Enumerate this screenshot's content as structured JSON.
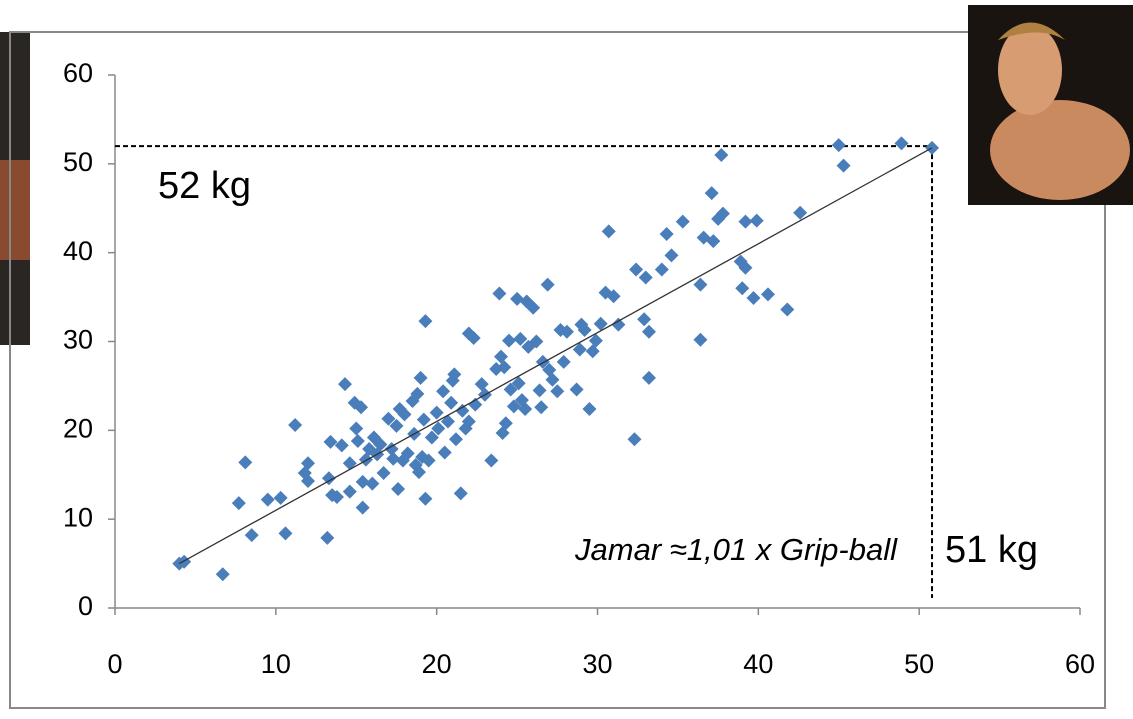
{
  "chart_data": {
    "type": "scatter",
    "series": [
      {
        "color": "#4a7ebb",
        "x": [
          4,
          4.3,
          6.7,
          7.7,
          8.1,
          8.5,
          9.5,
          10.3,
          10.6,
          11.2,
          11.8,
          12,
          12,
          13.2,
          13.3,
          13.4,
          13.5,
          13.8,
          14.1,
          14.3,
          14.6,
          14.6,
          14.9,
          15,
          15.1,
          15.3,
          15.4,
          15.4,
          15.6,
          15.8,
          16,
          16.1,
          16.3,
          16.5,
          16.7,
          17,
          17.2,
          17.3,
          17.5,
          17.6,
          17.7,
          17.9,
          18,
          18.2,
          18.5,
          18.6,
          18.7,
          18.8,
          18.9,
          19,
          19.1,
          19.2,
          19.3,
          19.3,
          19.5,
          19.7,
          20,
          20.1,
          20.4,
          20.5,
          20.7,
          20.9,
          21,
          21.1,
          21.2,
          21.5,
          21.6,
          21.8,
          22,
          22,
          22.3,
          22.4,
          22.8,
          23,
          23.4,
          23.7,
          23.9,
          24,
          24.1,
          24.2,
          24.3,
          24.5,
          24.6,
          24.8,
          25,
          25.1,
          25.2,
          25.3,
          25.5,
          25.6,
          25.7,
          26,
          26.2,
          26.4,
          26.5,
          26.6,
          26.9,
          27,
          27.2,
          27.5,
          27.7,
          27.9,
          28.1,
          28.7,
          28.9,
          29,
          29.2,
          29.5,
          29.7,
          29.9,
          30.2,
          30.5,
          30.7,
          31,
          31.3,
          32.3,
          32.4,
          32.9,
          33,
          33.2,
          33.2,
          34,
          34.3,
          34.6,
          35.3,
          36.4,
          36.4,
          36.6,
          37.1,
          37.2,
          37.5,
          37.7,
          37.8,
          38.9,
          39,
          39.2,
          39.2,
          39.7,
          39.9,
          40.6,
          41.8,
          42.6,
          45,
          45.3,
          48.9,
          50.8
        ],
        "values": [
          5,
          5.2,
          3.8,
          11.8,
          16.4,
          8.2,
          12.2,
          12.4,
          8.4,
          20.6,
          15.2,
          16.3,
          14.3,
          7.9,
          14.6,
          18.7,
          12.7,
          12.5,
          18.3,
          25.2,
          16.3,
          13.1,
          23.1,
          20.2,
          18.8,
          22.6,
          14.2,
          11.3,
          16.7,
          17.9,
          14,
          19.2,
          17.3,
          18.4,
          15.2,
          21.3,
          17.9,
          16.8,
          20.5,
          13.4,
          22.4,
          16.6,
          21.8,
          17.4,
          23.3,
          19.6,
          16.1,
          24.1,
          15.3,
          25.9,
          17,
          21.2,
          12.3,
          32.3,
          16.6,
          19.2,
          22,
          20.2,
          24.4,
          17.5,
          21,
          23.1,
          25.6,
          26.3,
          19,
          12.9,
          22.2,
          20.2,
          30.9,
          21,
          30.4,
          22.9,
          25.2,
          24,
          16.6,
          26.9,
          35.4,
          28.3,
          19.7,
          27.1,
          20.8,
          30.1,
          24.6,
          22.7,
          34.8,
          25.3,
          30.3,
          23.4,
          22.4,
          34.5,
          29.4,
          33.8,
          30,
          24.5,
          22.6,
          27.7,
          36.4,
          26.8,
          25.7,
          24.4,
          31.3,
          27.7,
          31.1,
          24.6,
          29.1,
          31.9,
          31.3,
          22.4,
          28.9,
          30.1,
          32,
          35.5,
          42.4,
          35.1,
          31.9,
          19,
          38.1,
          32.5,
          37.2,
          25.9,
          31.1,
          38.1,
          42.1,
          39.7,
          43.5,
          30.2,
          36.4,
          41.7,
          46.7,
          41.3,
          43.8,
          51,
          44.4,
          39,
          36,
          38.3,
          43.5,
          34.9,
          43.6,
          35.3,
          33.6,
          44.5,
          52.1,
          49.8,
          52.3,
          51.8
        ]
      }
    ],
    "trendline": {
      "x": [
        4,
        50.8
      ],
      "y": [
        5,
        51.8
      ]
    },
    "reference": {
      "x": 50.8,
      "y": 52
    },
    "annotations": [
      "52 kg",
      "51 kg",
      "Jamar ≈1,01 x Grip-ball"
    ],
    "xlim": [
      0,
      60
    ],
    "xticks": [
      0,
      10,
      20,
      30,
      40,
      50,
      60
    ],
    "ylim": [
      0,
      60
    ],
    "yticks": [
      0,
      10,
      20,
      30,
      40,
      50,
      60
    ]
  }
}
